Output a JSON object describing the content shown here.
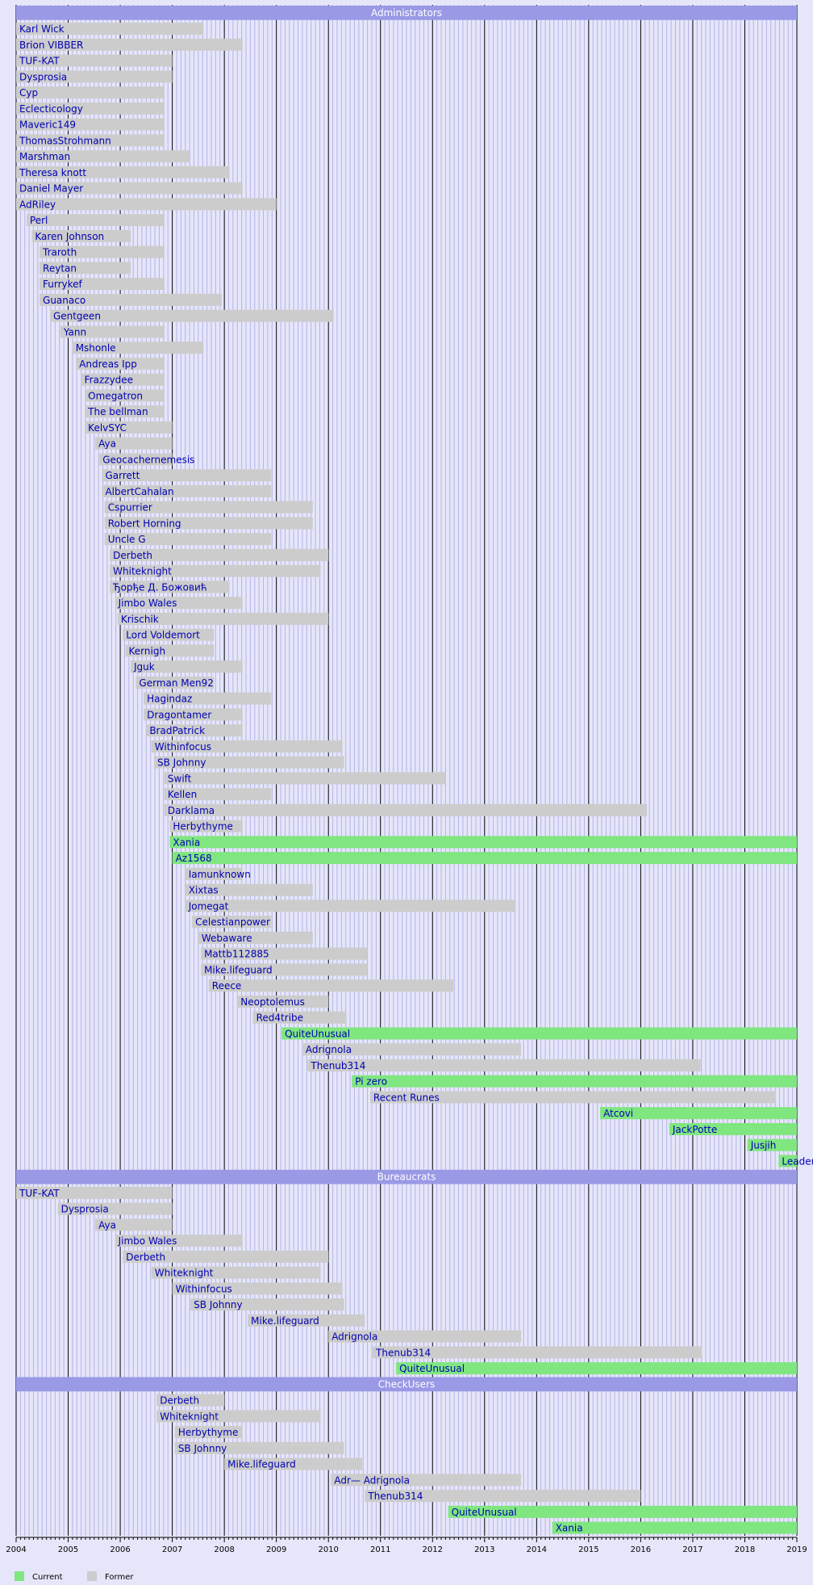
{
  "chart_data": {
    "type": "timeline",
    "x_axis": {
      "range": [
        2004,
        2019
      ],
      "tick_labels": [
        "2004",
        "2005",
        "2006",
        "2007",
        "2008",
        "2009",
        "2010",
        "2011",
        "2012",
        "2013",
        "2014",
        "2015",
        "2016",
        "2017",
        "2018",
        "2019"
      ]
    },
    "colors": {
      "current": "#80e680",
      "former": "#cccccc",
      "section_header": "#9999e6",
      "background": "#e6e6fa",
      "label_text": "#0000b4"
    },
    "legend": {
      "position": "bottom-left",
      "items": [
        {
          "key": "current",
          "label": "Current"
        },
        {
          "key": "former",
          "label": "Former"
        }
      ]
    },
    "sections": [
      {
        "title": "Administrators",
        "rows": [
          {
            "label": "Karl Wick",
            "start": 2004.0,
            "end": 2007.6,
            "status": "former"
          },
          {
            "label": "Brion VIBBER",
            "start": 2004.0,
            "end": 2008.35,
            "status": "former"
          },
          {
            "label": "TUF-KAT",
            "start": 2004.0,
            "end": 2007.0,
            "status": "former"
          },
          {
            "label": "Dysprosia",
            "start": 2004.0,
            "end": 2007.0,
            "status": "former"
          },
          {
            "label": "Cyp",
            "start": 2004.0,
            "end": 2006.85,
            "status": "former"
          },
          {
            "label": "Eclecticology",
            "start": 2004.0,
            "end": 2006.85,
            "status": "former"
          },
          {
            "label": "Maveric149",
            "start": 2004.0,
            "end": 2006.85,
            "status": "former"
          },
          {
            "label": "ThomasStrohmann",
            "start": 2004.0,
            "end": 2006.85,
            "status": "former"
          },
          {
            "label": "Marshman",
            "start": 2004.0,
            "end": 2007.33,
            "status": "former"
          },
          {
            "label": "Theresa knott",
            "start": 2004.0,
            "end": 2008.1,
            "status": "former"
          },
          {
            "label": "Daniel Mayer",
            "start": 2004.0,
            "end": 2008.35,
            "status": "former"
          },
          {
            "label": "AdRiley",
            "start": 2004.0,
            "end": 2009.0,
            "status": "former"
          },
          {
            "label": "Perl",
            "start": 2004.2,
            "end": 2006.85,
            "status": "former"
          },
          {
            "label": "Karen Johnson",
            "start": 2004.3,
            "end": 2006.2,
            "status": "former"
          },
          {
            "label": "Traroth",
            "start": 2004.45,
            "end": 2006.85,
            "status": "former"
          },
          {
            "label": "Reytan",
            "start": 2004.45,
            "end": 2006.2,
            "status": "former"
          },
          {
            "label": "Furrykef",
            "start": 2004.45,
            "end": 2006.85,
            "status": "former"
          },
          {
            "label": "Guanaco",
            "start": 2004.45,
            "end": 2007.95,
            "status": "former"
          },
          {
            "label": "Gentgeen",
            "start": 2004.65,
            "end": 2010.1,
            "status": "former"
          },
          {
            "label": "Yann",
            "start": 2004.85,
            "end": 2006.85,
            "status": "former"
          },
          {
            "label": "Mshonle",
            "start": 2005.08,
            "end": 2007.6,
            "status": "former"
          },
          {
            "label": "Andreas Ipp",
            "start": 2005.15,
            "end": 2006.85,
            "status": "former"
          },
          {
            "label": "Frazzydee",
            "start": 2005.25,
            "end": 2006.85,
            "status": "former"
          },
          {
            "label": "Omegatron",
            "start": 2005.32,
            "end": 2006.85,
            "status": "former"
          },
          {
            "label": "The bellman",
            "start": 2005.32,
            "end": 2006.85,
            "status": "former"
          },
          {
            "label": "KelvSYC",
            "start": 2005.32,
            "end": 2007.0,
            "status": "former"
          },
          {
            "label": "Aya",
            "start": 2005.52,
            "end": 2007.0,
            "status": "former"
          },
          {
            "label": "Geocachernemesis",
            "start": 2005.6,
            "end": 2007.0,
            "status": "former"
          },
          {
            "label": "Garrett",
            "start": 2005.65,
            "end": 2008.9,
            "status": "former"
          },
          {
            "label": "AlbertCahalan",
            "start": 2005.65,
            "end": 2008.9,
            "status": "former"
          },
          {
            "label": "Cspurrier",
            "start": 2005.7,
            "end": 2009.7,
            "status": "former"
          },
          {
            "label": "Robert Horning",
            "start": 2005.7,
            "end": 2009.7,
            "status": "former"
          },
          {
            "label": "Uncle G",
            "start": 2005.7,
            "end": 2008.9,
            "status": "former"
          },
          {
            "label": "Derbeth",
            "start": 2005.8,
            "end": 2010.0,
            "status": "former"
          },
          {
            "label": "Whiteknight",
            "start": 2005.8,
            "end": 2009.85,
            "status": "former"
          },
          {
            "label": "Ђорђе Д. Божовић",
            "start": 2005.8,
            "end": 2008.1,
            "status": "former"
          },
          {
            "label": "Jimbo Wales",
            "start": 2005.9,
            "end": 2008.35,
            "status": "former"
          },
          {
            "label": "Krischik",
            "start": 2005.95,
            "end": 2010.0,
            "status": "former"
          },
          {
            "label": "Lord Voldemort",
            "start": 2006.05,
            "end": 2007.8,
            "status": "former"
          },
          {
            "label": "Kernigh",
            "start": 2006.1,
            "end": 2007.8,
            "status": "former"
          },
          {
            "label": "Jguk",
            "start": 2006.2,
            "end": 2008.35,
            "status": "former"
          },
          {
            "label": "German Men92",
            "start": 2006.3,
            "end": 2007.8,
            "status": "former"
          },
          {
            "label": "Hagindaz",
            "start": 2006.45,
            "end": 2008.9,
            "status": "former"
          },
          {
            "label": "Dragontamer",
            "start": 2006.45,
            "end": 2008.35,
            "status": "former"
          },
          {
            "label": "BradPatrick",
            "start": 2006.5,
            "end": 2008.35,
            "status": "former"
          },
          {
            "label": "Withinfocus",
            "start": 2006.6,
            "end": 2010.27,
            "status": "former"
          },
          {
            "label": "SB Johnny",
            "start": 2006.65,
            "end": 2010.3,
            "status": "former"
          },
          {
            "label": "Swift",
            "start": 2006.85,
            "end": 2012.25,
            "status": "former"
          },
          {
            "label": "Kellen",
            "start": 2006.85,
            "end": 2008.9,
            "status": "former"
          },
          {
            "label": "Darklama",
            "start": 2006.85,
            "end": 2016.12,
            "status": "former"
          },
          {
            "label": "Herbythyme",
            "start": 2006.95,
            "end": 2008.35,
            "status": "former"
          },
          {
            "label": "Xania",
            "start": 2006.95,
            "end": 2019.0,
            "status": "current"
          },
          {
            "label": "Az1568",
            "start": 2007.0,
            "end": 2019.0,
            "status": "current"
          },
          {
            "label": "Iamunknown",
            "start": 2007.25,
            "end": 2008.35,
            "status": "former"
          },
          {
            "label": "Xixtas",
            "start": 2007.25,
            "end": 2009.7,
            "status": "former"
          },
          {
            "label": "Jomegat",
            "start": 2007.25,
            "end": 2013.6,
            "status": "former"
          },
          {
            "label": "Celestianpower",
            "start": 2007.38,
            "end": 2008.9,
            "status": "former"
          },
          {
            "label": "Webaware",
            "start": 2007.5,
            "end": 2009.7,
            "status": "former"
          },
          {
            "label": "Mattb112885",
            "start": 2007.55,
            "end": 2010.75,
            "status": "former"
          },
          {
            "label": "Mike.lifeguard",
            "start": 2007.55,
            "end": 2010.75,
            "status": "former"
          },
          {
            "label": "Reece",
            "start": 2007.7,
            "end": 2012.4,
            "status": "former"
          },
          {
            "label": "Neoptolemus",
            "start": 2008.25,
            "end": 2010.0,
            "status": "former"
          },
          {
            "label": "Red4tribe",
            "start": 2008.55,
            "end": 2010.35,
            "status": "former"
          },
          {
            "label": "QuiteUnusual",
            "start": 2009.1,
            "end": 2019.0,
            "status": "current"
          },
          {
            "label": "Adrignola",
            "start": 2009.5,
            "end": 2013.7,
            "status": "former"
          },
          {
            "label": "Thenub314",
            "start": 2009.6,
            "end": 2017.15,
            "status": "former"
          },
          {
            "label": "Pi zero",
            "start": 2010.45,
            "end": 2019.0,
            "status": "current"
          },
          {
            "label": "Recent Runes",
            "start": 2010.8,
            "end": 2018.6,
            "status": "former"
          },
          {
            "label": "Atcovi",
            "start": 2015.22,
            "end": 2019.0,
            "status": "current"
          },
          {
            "label": "JackPotte",
            "start": 2016.55,
            "end": 2019.0,
            "status": "current"
          },
          {
            "label": "Jusjih",
            "start": 2018.05,
            "end": 2019.0,
            "status": "current"
          },
          {
            "label": "Leaderboard",
            "start": 2018.65,
            "end": 2019.0,
            "status": "current"
          }
        ]
      },
      {
        "title": "Bureaucrats",
        "rows": [
          {
            "label": "TUF-KAT",
            "start": 2004.0,
            "end": 2007.0,
            "status": "former"
          },
          {
            "label": "Dysprosia",
            "start": 2004.8,
            "end": 2007.0,
            "status": "former"
          },
          {
            "label": "Aya",
            "start": 2005.52,
            "end": 2007.0,
            "status": "former"
          },
          {
            "label": "Jimbo Wales",
            "start": 2005.9,
            "end": 2008.35,
            "status": "former"
          },
          {
            "label": "Derbeth",
            "start": 2006.05,
            "end": 2010.0,
            "status": "former"
          },
          {
            "label": "Whiteknight",
            "start": 2006.6,
            "end": 2009.85,
            "status": "former"
          },
          {
            "label": "Withinfocus",
            "start": 2007.0,
            "end": 2010.27,
            "status": "former"
          },
          {
            "label": "SB Johnny",
            "start": 2007.35,
            "end": 2010.3,
            "status": "former"
          },
          {
            "label": "Mike.lifeguard",
            "start": 2008.45,
            "end": 2010.7,
            "status": "former"
          },
          {
            "label": "Adrignola",
            "start": 2010.0,
            "end": 2013.7,
            "status": "former"
          },
          {
            "label": "Thenub314",
            "start": 2010.85,
            "end": 2017.18,
            "status": "former"
          },
          {
            "label": "QuiteUnusual",
            "start": 2011.3,
            "end": 2019.0,
            "status": "current"
          }
        ]
      },
      {
        "title": "CheckUsers",
        "rows": [
          {
            "label": "Derbeth",
            "start": 2006.7,
            "end": 2008.0,
            "status": "former"
          },
          {
            "label": "Whiteknight",
            "start": 2006.7,
            "end": 2009.85,
            "status": "former"
          },
          {
            "label": "Herbythyme",
            "start": 2007.05,
            "end": 2008.35,
            "status": "former"
          },
          {
            "label": "SB Johnny",
            "start": 2007.05,
            "end": 2010.3,
            "status": "former"
          },
          {
            "label": "Mike.lifeguard",
            "start": 2008.0,
            "end": 2010.65,
            "status": "former"
          },
          {
            "label": "Adr— Adrignola",
            "start": 2010.05,
            "end": 2013.7,
            "status": "former"
          },
          {
            "label": "Thenub314",
            "start": 2010.7,
            "end": 2016.0,
            "status": "former"
          },
          {
            "label": "QuiteUnusual",
            "start": 2012.3,
            "end": 2019.0,
            "status": "current"
          },
          {
            "label": "Xania",
            "start": 2014.3,
            "end": 2019.0,
            "status": "current"
          }
        ]
      }
    ]
  }
}
